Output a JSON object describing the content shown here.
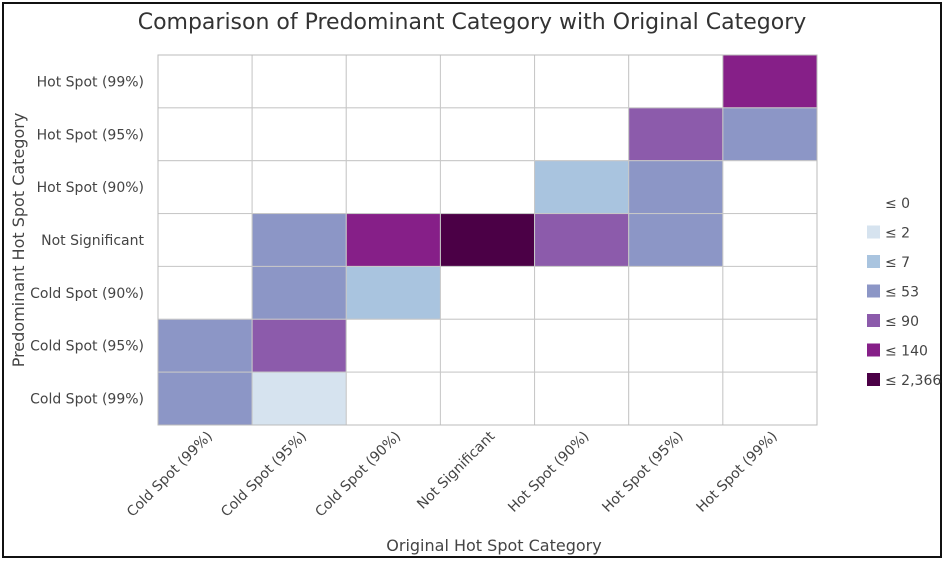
{
  "chart_data": {
    "type": "heatmap",
    "title": "Comparison of Predominant Category with Original Category",
    "xlabel": "Original Hot Spot Category",
    "ylabel": "Predominant Hot Spot Category",
    "x_categories": [
      "Cold Spot (99%)",
      "Cold Spot (95%)",
      "Cold Spot (90%)",
      "Not Significant",
      "Hot Spot (90%)",
      "Hot Spot (95%)",
      "Hot Spot (99%)"
    ],
    "y_categories": [
      "Hot Spot (99%)",
      "Hot Spot (95%)",
      "Hot Spot (90%)",
      "Not Significant",
      "Cold Spot (90%)",
      "Cold Spot (95%)",
      "Cold Spot (99%)"
    ],
    "legend": {
      "placement": "right",
      "bins": [
        {
          "label": "≤ 0",
          "color": "#ffffff"
        },
        {
          "label": "≤ 2",
          "color": "#d6e3ef"
        },
        {
          "label": "≤ 7",
          "color": "#a9c4df"
        },
        {
          "label": "≤ 53",
          "color": "#8c96c6"
        },
        {
          "label": "≤ 90",
          "color": "#8c5bab"
        },
        {
          "label": "≤ 140",
          "color": "#861f88"
        },
        {
          "label": "≤ 2,366",
          "color": "#4b0046"
        }
      ]
    },
    "cell_bins": [
      [
        0,
        0,
        0,
        0,
        0,
        0,
        5
      ],
      [
        0,
        0,
        0,
        0,
        0,
        4,
        3
      ],
      [
        0,
        0,
        0,
        0,
        2,
        3,
        0
      ],
      [
        0,
        3,
        5,
        6,
        4,
        3,
        0
      ],
      [
        0,
        3,
        2,
        0,
        0,
        0,
        0
      ],
      [
        3,
        4,
        0,
        0,
        0,
        0,
        0
      ],
      [
        3,
        1,
        0,
        0,
        0,
        0,
        0
      ]
    ],
    "grid": true
  }
}
